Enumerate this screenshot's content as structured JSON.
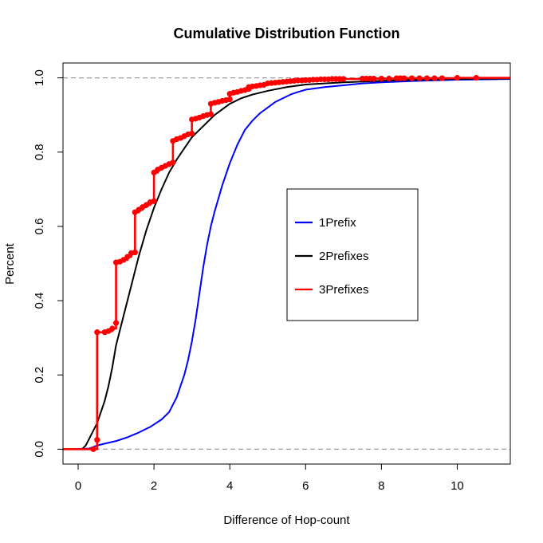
{
  "chart_data": {
    "type": "line",
    "title": "Cumulative Distribution Function",
    "xlabel": "Difference of Hop-count",
    "ylabel": "Percent",
    "xlim": [
      -0.4,
      11.4
    ],
    "ylim": [
      -0.04,
      1.04
    ],
    "x_ticks": [
      0,
      2,
      4,
      6,
      8,
      10
    ],
    "y_ticks": [
      0.0,
      0.2,
      0.4,
      0.6,
      0.8,
      1.0
    ],
    "x_tick_labels": [
      "0",
      "2",
      "4",
      "6",
      "8",
      "10"
    ],
    "y_tick_labels": [
      "0.0",
      "0.2",
      "0.4",
      "0.6",
      "0.8",
      "1.0"
    ],
    "reference_lines": [
      0,
      1
    ],
    "legend_position": "center-right",
    "series": [
      {
        "name": "1Prefix",
        "color": "#0000ff",
        "style": "line",
        "x": [
          -0.4,
          0,
          0.3,
          0.5,
          0.7,
          1.0,
          1.3,
          1.6,
          1.9,
          2.2,
          2.4,
          2.6,
          2.8,
          2.9,
          3.0,
          3.1,
          3.2,
          3.3,
          3.4,
          3.5,
          3.6,
          3.8,
          4.0,
          4.2,
          4.4,
          4.6,
          4.8,
          5.0,
          5.2,
          5.4,
          5.6,
          5.8,
          6.0,
          6.5,
          7.0,
          7.5,
          8.0,
          9.0,
          10.0,
          11.4
        ],
        "y": [
          0.0,
          0.0,
          0.002,
          0.01,
          0.015,
          0.022,
          0.032,
          0.045,
          0.06,
          0.08,
          0.1,
          0.14,
          0.2,
          0.24,
          0.29,
          0.35,
          0.42,
          0.49,
          0.55,
          0.6,
          0.64,
          0.71,
          0.77,
          0.82,
          0.86,
          0.885,
          0.905,
          0.92,
          0.935,
          0.945,
          0.955,
          0.962,
          0.968,
          0.975,
          0.98,
          0.985,
          0.988,
          0.992,
          0.995,
          0.997
        ]
      },
      {
        "name": "2Prefixes",
        "color": "#000000",
        "style": "line",
        "x": [
          -0.4,
          0,
          0.1,
          0.2,
          0.3,
          0.4,
          0.5,
          0.6,
          0.7,
          0.8,
          0.9,
          1.0,
          1.2,
          1.4,
          1.6,
          1.8,
          2.0,
          2.2,
          2.4,
          2.6,
          2.8,
          3.0,
          3.2,
          3.4,
          3.6,
          3.8,
          4.0,
          4.3,
          4.6,
          5.0,
          5.5,
          6.0,
          7.0,
          8.0,
          9.0,
          10.0,
          11.4
        ],
        "y": [
          0.0,
          0.0,
          0.0,
          0.01,
          0.03,
          0.05,
          0.07,
          0.1,
          0.13,
          0.17,
          0.22,
          0.28,
          0.36,
          0.44,
          0.52,
          0.59,
          0.65,
          0.7,
          0.745,
          0.78,
          0.81,
          0.84,
          0.86,
          0.88,
          0.9,
          0.915,
          0.93,
          0.945,
          0.955,
          0.965,
          0.975,
          0.982,
          0.988,
          0.992,
          0.995,
          0.997,
          0.998
        ]
      },
      {
        "name": "3Prefixes",
        "color": "#ff0000",
        "style": "step-with-points",
        "x": [
          -0.4,
          0.4,
          0.5,
          0.5,
          0.7,
          0.8,
          0.9,
          1.0,
          1.0,
          1.1,
          1.2,
          1.3,
          1.4,
          1.5,
          1.5,
          1.6,
          1.7,
          1.8,
          1.9,
          2.0,
          2.0,
          2.1,
          2.2,
          2.3,
          2.4,
          2.5,
          2.5,
          2.6,
          2.7,
          2.8,
          2.9,
          3.0,
          3.0,
          3.1,
          3.2,
          3.3,
          3.4,
          3.5,
          3.5,
          3.6,
          3.7,
          3.8,
          3.9,
          4.0,
          4.0,
          4.1,
          4.2,
          4.3,
          4.4,
          4.5,
          4.5,
          4.6,
          4.7,
          4.8,
          4.9,
          5.0,
          5.1,
          5.2,
          5.3,
          5.4,
          5.5,
          5.6,
          5.7,
          5.8,
          5.9,
          6.0,
          6.1,
          6.2,
          6.3,
          6.4,
          6.5,
          6.6,
          6.7,
          6.8,
          6.9,
          7.0,
          7.5,
          7.6,
          7.7,
          7.8,
          8.0,
          8.2,
          8.4,
          8.5,
          8.6,
          8.8,
          9.0,
          9.2,
          9.4,
          9.6,
          10.0,
          10.5,
          11.4
        ],
        "y": [
          0.0,
          0.0,
          0.025,
          0.315,
          0.315,
          0.318,
          0.325,
          0.34,
          0.503,
          0.505,
          0.51,
          0.518,
          0.528,
          0.53,
          0.638,
          0.645,
          0.652,
          0.658,
          0.665,
          0.668,
          0.745,
          0.753,
          0.758,
          0.763,
          0.768,
          0.772,
          0.83,
          0.835,
          0.838,
          0.843,
          0.848,
          0.85,
          0.888,
          0.89,
          0.893,
          0.897,
          0.9,
          0.902,
          0.93,
          0.933,
          0.935,
          0.938,
          0.94,
          0.942,
          0.957,
          0.96,
          0.962,
          0.965,
          0.967,
          0.97,
          0.975,
          0.977,
          0.978,
          0.98,
          0.981,
          0.985,
          0.986,
          0.987,
          0.988,
          0.989,
          0.99,
          0.991,
          0.992,
          0.993,
          0.993,
          0.994,
          0.994,
          0.995,
          0.995,
          0.996,
          0.996,
          0.996,
          0.997,
          0.997,
          0.997,
          0.997,
          0.998,
          0.998,
          0.998,
          0.998,
          0.998,
          0.998,
          0.999,
          0.999,
          0.999,
          0.999,
          0.999,
          0.999,
          0.999,
          0.999,
          1.0,
          1.0,
          1.0
        ]
      }
    ]
  }
}
